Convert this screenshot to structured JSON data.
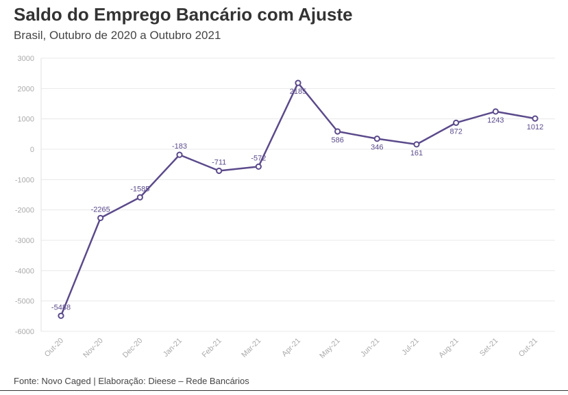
{
  "header": {
    "title": "Saldo do Emprego Bancário com Ajuste",
    "subtitle": "Brasil, Outubro de 2020 a Outubro 2021"
  },
  "footer": {
    "source": "Fonte: Novo Caged | Elaboração: Dieese – Rede Bancários"
  },
  "chart_data": {
    "type": "line",
    "title": "Saldo do Emprego Bancário com Ajuste",
    "subtitle": "Brasil, Outubro de 2020 a Outubro 2021",
    "xlabel": "",
    "ylabel": "",
    "categories": [
      "Out-20",
      "Nov-20",
      "Dec-20",
      "Jan-21",
      "Feb-21",
      "Mar-21",
      "Apr-21",
      "May-21",
      "Jun-21",
      "Jul-21",
      "Aug-21",
      "Set-21",
      "Out-21"
    ],
    "values": [
      -5488,
      -2265,
      -1585,
      -183,
      -711,
      -572,
      2185,
      586,
      346,
      161,
      872,
      1243,
      1012
    ],
    "labels": [
      "-5488",
      "-2265",
      "-1585",
      "-183",
      "-711",
      "-572",
      "2185",
      "586",
      "346",
      "161",
      "872",
      "1243",
      "1012"
    ],
    "ylim": [
      -6000,
      3000
    ],
    "yticks": [
      -6000,
      -5000,
      -4000,
      -3000,
      -2000,
      -1000,
      0,
      1000,
      2000,
      3000
    ],
    "ytick_labels": [
      "-6000",
      "-5000",
      "-4000",
      "-3000",
      "-2000",
      "-1000",
      "0",
      "1000",
      "2000",
      "3000"
    ],
    "grid": true,
    "legend": "none",
    "color": "#5b4a8b"
  }
}
